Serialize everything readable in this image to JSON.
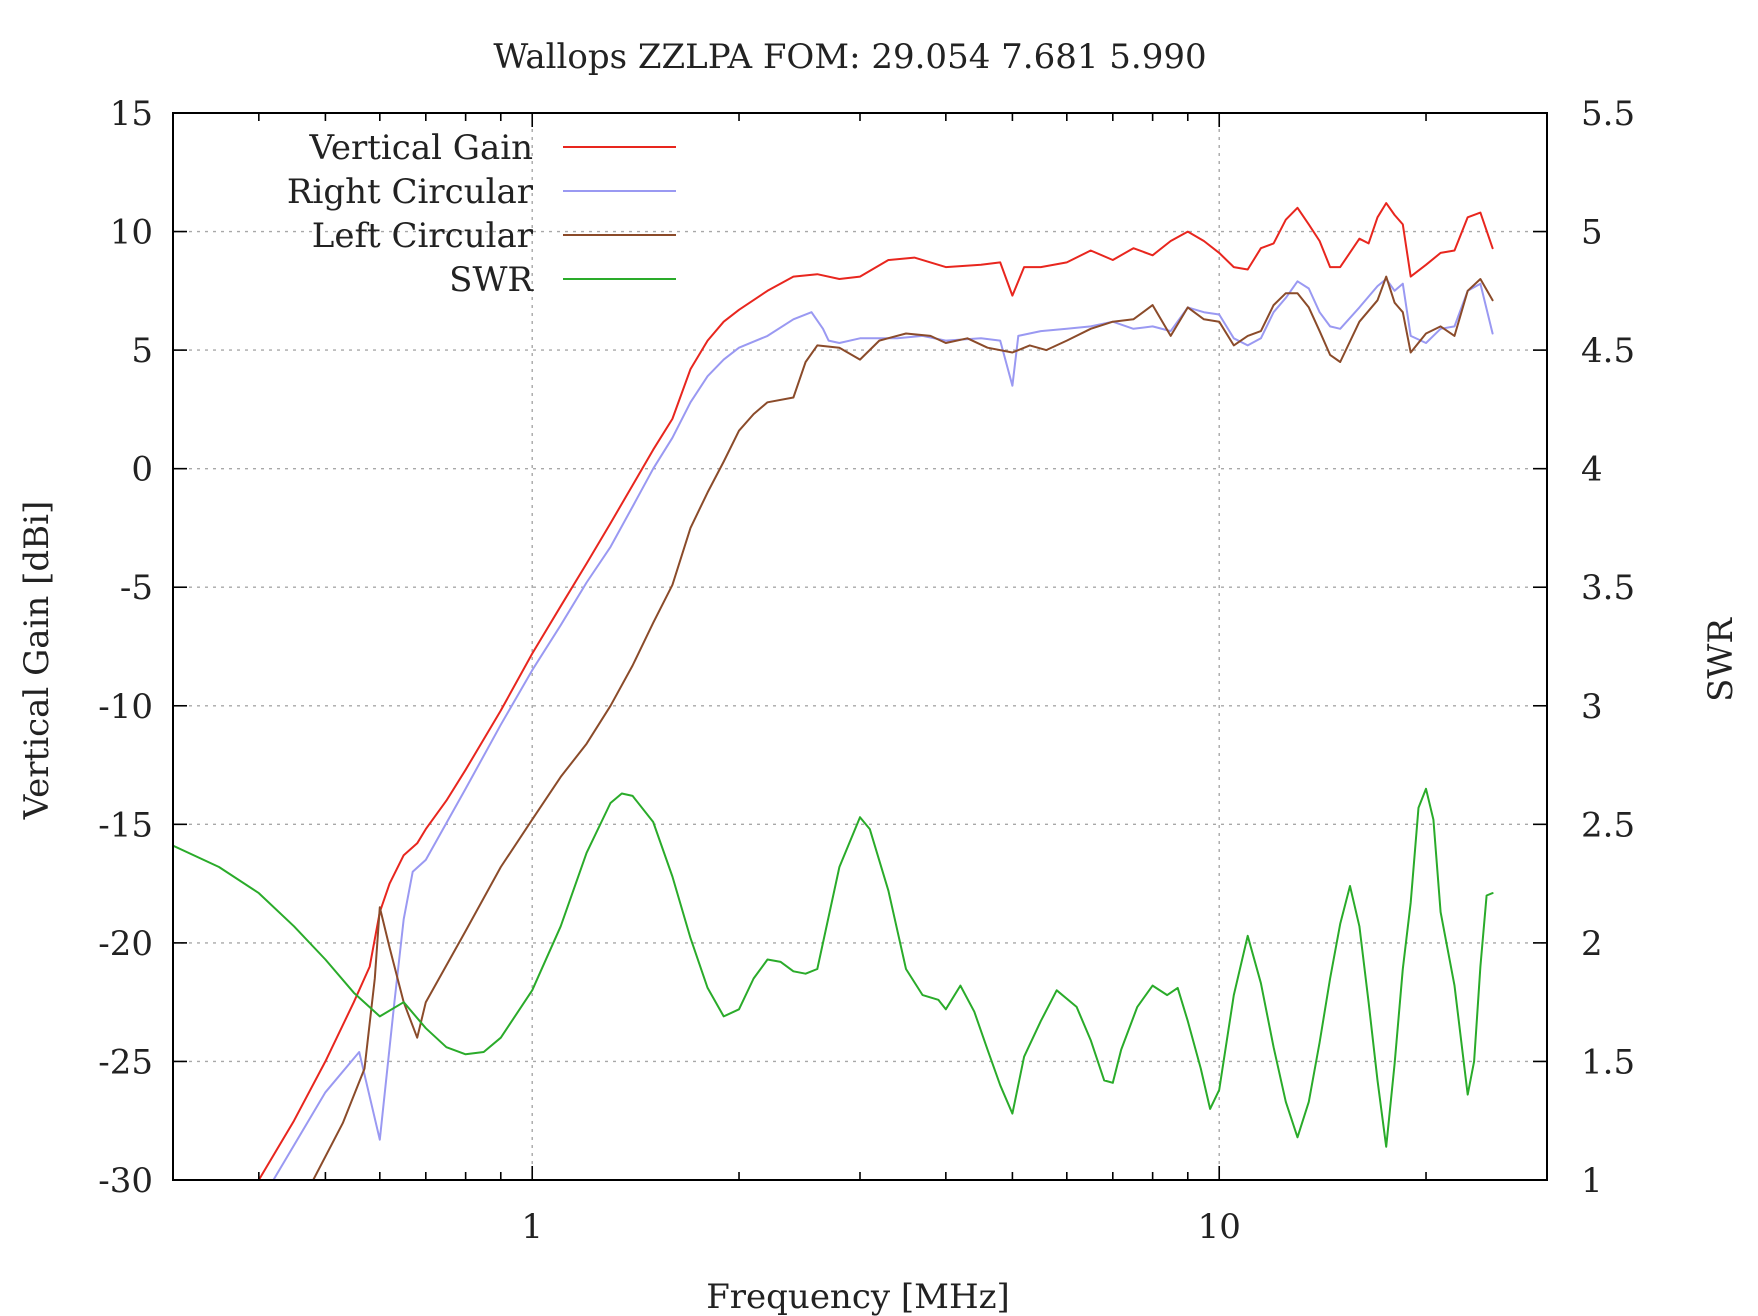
{
  "chart_data": {
    "type": "line",
    "title": "Wallops ZZLPA  FOM:   29.054   7.681   5.990",
    "xlabel": "Frequency [MHz]",
    "ylabel": "Vertical Gain [dBi]",
    "y2label": "SWR",
    "x_scale": "log",
    "xlim": [
      0.3,
      30
    ],
    "ylim": [
      -30,
      15
    ],
    "y2lim": [
      1,
      5.5
    ],
    "x_ticks": [
      1,
      10
    ],
    "x_tick_labels": [
      "1",
      "10"
    ],
    "y_ticks": [
      15,
      10,
      5,
      0,
      -5,
      -10,
      -15,
      -20,
      -25,
      -30
    ],
    "y_tick_labels": [
      "15",
      "10",
      "5",
      "0",
      "-5",
      "-10",
      "-15",
      "-20",
      "-25",
      "-30"
    ],
    "y2_ticks": [
      5.5,
      5,
      4.5,
      4,
      3.5,
      3,
      2.5,
      2,
      1.5,
      1
    ],
    "y2_tick_labels": [
      "5.5",
      "5",
      "4.5",
      "4",
      "3.5",
      "3",
      "2.5",
      "2",
      "1.5",
      "1"
    ],
    "grid": true,
    "legend_position": "top-left",
    "series": [
      {
        "name": "Vertical Gain",
        "axis": "left",
        "color": "#e8261e",
        "points": [
          [
            0.4,
            -30
          ],
          [
            0.45,
            -27.5
          ],
          [
            0.5,
            -25
          ],
          [
            0.55,
            -22.5
          ],
          [
            0.58,
            -21
          ],
          [
            0.6,
            -18.7
          ],
          [
            0.62,
            -17.5
          ],
          [
            0.65,
            -16.3
          ],
          [
            0.68,
            -15.8
          ],
          [
            0.7,
            -15.2
          ],
          [
            0.75,
            -14
          ],
          [
            0.8,
            -12.7
          ],
          [
            0.9,
            -10.2
          ],
          [
            1.0,
            -7.8
          ],
          [
            1.1,
            -5.8
          ],
          [
            1.2,
            -4
          ],
          [
            1.3,
            -2.3
          ],
          [
            1.4,
            -0.7
          ],
          [
            1.5,
            0.8
          ],
          [
            1.6,
            2.1
          ],
          [
            1.7,
            4.2
          ],
          [
            1.8,
            5.4
          ],
          [
            1.9,
            6.2
          ],
          [
            2.0,
            6.7
          ],
          [
            2.2,
            7.5
          ],
          [
            2.4,
            8.1
          ],
          [
            2.6,
            8.2
          ],
          [
            2.8,
            8.0
          ],
          [
            3.0,
            8.1
          ],
          [
            3.3,
            8.8
          ],
          [
            3.6,
            8.9
          ],
          [
            4.0,
            8.5
          ],
          [
            4.5,
            8.6
          ],
          [
            4.8,
            8.7
          ],
          [
            5.0,
            7.3
          ],
          [
            5.2,
            8.5
          ],
          [
            5.5,
            8.5
          ],
          [
            6.0,
            8.7
          ],
          [
            6.5,
            9.2
          ],
          [
            7.0,
            8.8
          ],
          [
            7.5,
            9.3
          ],
          [
            8.0,
            9.0
          ],
          [
            8.5,
            9.6
          ],
          [
            9.0,
            10.0
          ],
          [
            9.5,
            9.6
          ],
          [
            10.0,
            9.1
          ],
          [
            10.5,
            8.5
          ],
          [
            11.0,
            8.4
          ],
          [
            11.5,
            9.3
          ],
          [
            12.0,
            9.5
          ],
          [
            12.5,
            10.5
          ],
          [
            13.0,
            11.0
          ],
          [
            13.5,
            10.3
          ],
          [
            14.0,
            9.6
          ],
          [
            14.5,
            8.5
          ],
          [
            15.0,
            8.5
          ],
          [
            16.0,
            9.7
          ],
          [
            16.5,
            9.5
          ],
          [
            17.0,
            10.6
          ],
          [
            17.5,
            11.2
          ],
          [
            18.0,
            10.7
          ],
          [
            18.5,
            10.3
          ],
          [
            19.0,
            8.1
          ],
          [
            20.0,
            8.6
          ],
          [
            21.0,
            9.1
          ],
          [
            22.0,
            9.2
          ],
          [
            23.0,
            10.6
          ],
          [
            24.0,
            10.8
          ],
          [
            25.0,
            9.3
          ]
        ]
      },
      {
        "name": "Right Circular",
        "axis": "left",
        "color": "#9a99f2",
        "points": [
          [
            0.42,
            -30
          ],
          [
            0.5,
            -26.3
          ],
          [
            0.56,
            -24.6
          ],
          [
            0.6,
            -28.3
          ],
          [
            0.63,
            -22.5
          ],
          [
            0.65,
            -19
          ],
          [
            0.67,
            -17
          ],
          [
            0.7,
            -16.5
          ],
          [
            0.8,
            -13.5
          ],
          [
            0.9,
            -10.8
          ],
          [
            1.0,
            -8.5
          ],
          [
            1.1,
            -6.6
          ],
          [
            1.2,
            -4.8
          ],
          [
            1.3,
            -3.3
          ],
          [
            1.4,
            -1.6
          ],
          [
            1.5,
            0
          ],
          [
            1.6,
            1.3
          ],
          [
            1.7,
            2.8
          ],
          [
            1.8,
            3.9
          ],
          [
            1.9,
            4.6
          ],
          [
            2.0,
            5.1
          ],
          [
            2.2,
            5.6
          ],
          [
            2.4,
            6.3
          ],
          [
            2.55,
            6.6
          ],
          [
            2.65,
            5.9
          ],
          [
            2.7,
            5.4
          ],
          [
            2.8,
            5.3
          ],
          [
            3.0,
            5.5
          ],
          [
            3.4,
            5.5
          ],
          [
            3.7,
            5.6
          ],
          [
            4.0,
            5.4
          ],
          [
            4.5,
            5.5
          ],
          [
            4.8,
            5.4
          ],
          [
            5.0,
            3.5
          ],
          [
            5.1,
            5.6
          ],
          [
            5.5,
            5.8
          ],
          [
            6.0,
            5.9
          ],
          [
            6.5,
            6.0
          ],
          [
            7.0,
            6.2
          ],
          [
            7.5,
            5.9
          ],
          [
            8.0,
            6.0
          ],
          [
            8.5,
            5.8
          ],
          [
            9.0,
            6.8
          ],
          [
            9.5,
            6.6
          ],
          [
            10.0,
            6.5
          ],
          [
            10.5,
            5.5
          ],
          [
            11.0,
            5.2
          ],
          [
            11.5,
            5.5
          ],
          [
            12.0,
            6.6
          ],
          [
            12.5,
            7.2
          ],
          [
            13.0,
            7.9
          ],
          [
            13.5,
            7.6
          ],
          [
            14.0,
            6.6
          ],
          [
            14.5,
            6.0
          ],
          [
            15.0,
            5.9
          ],
          [
            16.0,
            6.8
          ],
          [
            17.0,
            7.7
          ],
          [
            17.5,
            8.0
          ],
          [
            18.0,
            7.5
          ],
          [
            18.5,
            7.8
          ],
          [
            19.0,
            5.6
          ],
          [
            20.0,
            5.3
          ],
          [
            21.0,
            5.9
          ],
          [
            22.0,
            6.0
          ],
          [
            23.0,
            7.5
          ],
          [
            24.0,
            7.8
          ],
          [
            25.0,
            5.7
          ]
        ]
      },
      {
        "name": "Left Circular",
        "axis": "left",
        "color": "#8b4b2a",
        "points": [
          [
            0.48,
            -30
          ],
          [
            0.53,
            -27.6
          ],
          [
            0.57,
            -25.3
          ],
          [
            0.59,
            -21.5
          ],
          [
            0.6,
            -18.5
          ],
          [
            0.62,
            -20.2
          ],
          [
            0.65,
            -22.5
          ],
          [
            0.68,
            -24
          ],
          [
            0.7,
            -22.5
          ],
          [
            0.8,
            -19.5
          ],
          [
            0.9,
            -16.8
          ],
          [
            1.0,
            -14.8
          ],
          [
            1.1,
            -13
          ],
          [
            1.2,
            -11.6
          ],
          [
            1.3,
            -10
          ],
          [
            1.4,
            -8.3
          ],
          [
            1.5,
            -6.5
          ],
          [
            1.6,
            -4.9
          ],
          [
            1.7,
            -2.5
          ],
          [
            1.8,
            -1
          ],
          [
            1.9,
            0.3
          ],
          [
            2.0,
            1.6
          ],
          [
            2.1,
            2.3
          ],
          [
            2.2,
            2.8
          ],
          [
            2.4,
            3
          ],
          [
            2.5,
            4.5
          ],
          [
            2.6,
            5.2
          ],
          [
            2.8,
            5.1
          ],
          [
            3.0,
            4.6
          ],
          [
            3.2,
            5.4
          ],
          [
            3.5,
            5.7
          ],
          [
            3.8,
            5.6
          ],
          [
            4.0,
            5.3
          ],
          [
            4.3,
            5.5
          ],
          [
            4.6,
            5.1
          ],
          [
            5.0,
            4.9
          ],
          [
            5.3,
            5.2
          ],
          [
            5.6,
            5.0
          ],
          [
            6.0,
            5.4
          ],
          [
            6.5,
            5.9
          ],
          [
            7.0,
            6.2
          ],
          [
            7.5,
            6.3
          ],
          [
            8.0,
            6.9
          ],
          [
            8.5,
            5.6
          ],
          [
            9.0,
            6.8
          ],
          [
            9.5,
            6.3
          ],
          [
            10.0,
            6.2
          ],
          [
            10.5,
            5.2
          ],
          [
            11.0,
            5.6
          ],
          [
            11.5,
            5.8
          ],
          [
            12.0,
            6.9
          ],
          [
            12.5,
            7.4
          ],
          [
            13.0,
            7.4
          ],
          [
            13.5,
            6.8
          ],
          [
            14.0,
            5.8
          ],
          [
            14.5,
            4.8
          ],
          [
            15.0,
            4.5
          ],
          [
            16.0,
            6.2
          ],
          [
            17.0,
            7.1
          ],
          [
            17.5,
            8.1
          ],
          [
            18.0,
            7.0
          ],
          [
            18.5,
            6.6
          ],
          [
            19.0,
            4.9
          ],
          [
            20.0,
            5.7
          ],
          [
            21.0,
            6.0
          ],
          [
            22.0,
            5.6
          ],
          [
            23.0,
            7.5
          ],
          [
            24.0,
            8.0
          ],
          [
            25.0,
            7.1
          ]
        ]
      },
      {
        "name": "SWR",
        "axis": "right",
        "color": "#2aab2a",
        "points": [
          [
            0.3,
            2.41
          ],
          [
            0.35,
            2.32
          ],
          [
            0.4,
            2.21
          ],
          [
            0.45,
            2.07
          ],
          [
            0.5,
            1.93
          ],
          [
            0.55,
            1.79
          ],
          [
            0.6,
            1.69
          ],
          [
            0.65,
            1.75
          ],
          [
            0.7,
            1.64
          ],
          [
            0.75,
            1.56
          ],
          [
            0.8,
            1.53
          ],
          [
            0.85,
            1.54
          ],
          [
            0.9,
            1.6
          ],
          [
            1.0,
            1.8
          ],
          [
            1.1,
            2.07
          ],
          [
            1.2,
            2.38
          ],
          [
            1.3,
            2.59
          ],
          [
            1.35,
            2.63
          ],
          [
            1.4,
            2.62
          ],
          [
            1.5,
            2.51
          ],
          [
            1.6,
            2.28
          ],
          [
            1.7,
            2.02
          ],
          [
            1.8,
            1.81
          ],
          [
            1.9,
            1.69
          ],
          [
            2.0,
            1.72
          ],
          [
            2.1,
            1.85
          ],
          [
            2.2,
            1.93
          ],
          [
            2.3,
            1.92
          ],
          [
            2.4,
            1.88
          ],
          [
            2.5,
            1.87
          ],
          [
            2.6,
            1.89
          ],
          [
            2.8,
            2.32
          ],
          [
            3.0,
            2.53
          ],
          [
            3.1,
            2.48
          ],
          [
            3.3,
            2.22
          ],
          [
            3.5,
            1.89
          ],
          [
            3.7,
            1.78
          ],
          [
            3.9,
            1.76
          ],
          [
            4.0,
            1.72
          ],
          [
            4.2,
            1.82
          ],
          [
            4.4,
            1.71
          ],
          [
            4.6,
            1.55
          ],
          [
            4.8,
            1.4
          ],
          [
            5.0,
            1.28
          ],
          [
            5.2,
            1.52
          ],
          [
            5.5,
            1.67
          ],
          [
            5.8,
            1.8
          ],
          [
            6.2,
            1.73
          ],
          [
            6.5,
            1.59
          ],
          [
            6.8,
            1.42
          ],
          [
            7.0,
            1.41
          ],
          [
            7.2,
            1.55
          ],
          [
            7.6,
            1.73
          ],
          [
            8.0,
            1.82
          ],
          [
            8.4,
            1.78
          ],
          [
            8.7,
            1.81
          ],
          [
            9.0,
            1.67
          ],
          [
            9.4,
            1.47
          ],
          [
            9.7,
            1.3
          ],
          [
            10.0,
            1.38
          ],
          [
            10.5,
            1.78
          ],
          [
            11.0,
            2.03
          ],
          [
            11.5,
            1.83
          ],
          [
            12.0,
            1.56
          ],
          [
            12.5,
            1.33
          ],
          [
            13.0,
            1.18
          ],
          [
            13.5,
            1.33
          ],
          [
            14.0,
            1.58
          ],
          [
            14.5,
            1.85
          ],
          [
            15.0,
            2.08
          ],
          [
            15.5,
            2.24
          ],
          [
            16.0,
            2.07
          ],
          [
            16.5,
            1.75
          ],
          [
            17.0,
            1.42
          ],
          [
            17.5,
            1.14
          ],
          [
            18.0,
            1.49
          ],
          [
            18.5,
            1.89
          ],
          [
            19.0,
            2.17
          ],
          [
            19.5,
            2.57
          ],
          [
            20.0,
            2.65
          ],
          [
            20.5,
            2.52
          ],
          [
            21.0,
            2.13
          ],
          [
            22.0,
            1.82
          ],
          [
            23.0,
            1.36
          ],
          [
            23.5,
            1.5
          ],
          [
            24.0,
            1.9
          ],
          [
            24.5,
            2.2
          ],
          [
            25.0,
            2.21
          ]
        ]
      }
    ]
  }
}
